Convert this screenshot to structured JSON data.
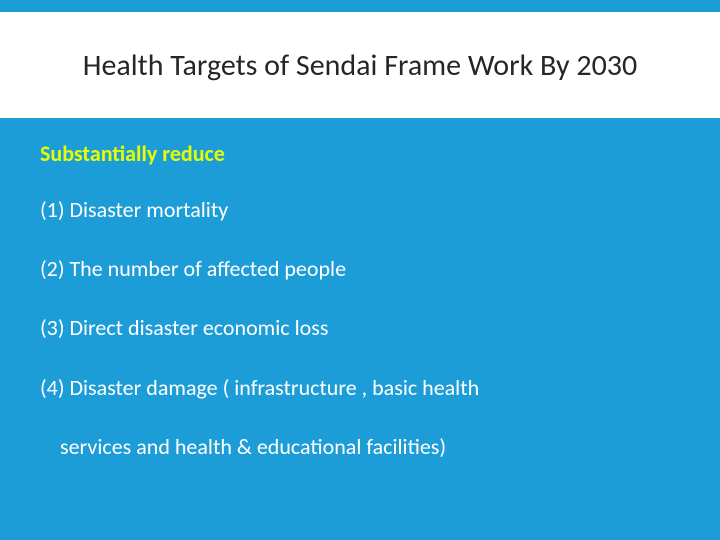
{
  "slide": {
    "background_color": "#1d9dd8",
    "title_bg": "#ffffff",
    "title_color": "#262626",
    "intro_color": "#e6ff00",
    "item_color": "#ffffff",
    "title_fontsize": 30,
    "body_fontsize": 22,
    "title": "Health Targets of Sendai Frame Work  By 2030",
    "intro": "Substantially reduce",
    "items": [
      "(1) Disaster mortality",
      "(2) The number of affected people",
      "(3) Direct disaster economic loss",
      "(4) Disaster damage ( infrastructure , basic health"
    ],
    "item4_cont": "services and health & educational facilities)"
  }
}
